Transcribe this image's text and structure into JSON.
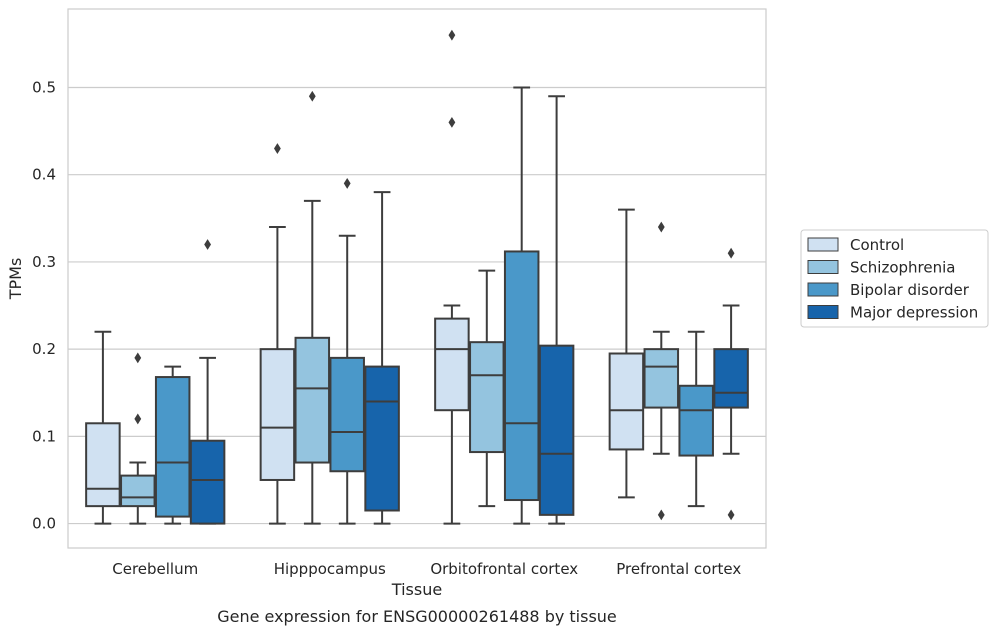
{
  "chart_data": {
    "type": "box",
    "caption": "Gene expression for ENSG00000261488 by tissue",
    "xlabel": "Tissue",
    "ylabel": "TPMs",
    "ylim": [
      -0.028,
      0.59
    ],
    "yticks": [
      "0.0",
      "0.1",
      "0.2",
      "0.3",
      "0.4",
      "0.5"
    ],
    "grid": "horizontal",
    "legend_position": "right",
    "categories": [
      "Cerebellum",
      "Hipppocampus",
      "Orbitofrontal cortex",
      "Prefrontal cortex"
    ],
    "series": [
      {
        "name": "Control",
        "color": "#d0e1f2",
        "boxes": [
          {
            "whislo": 0.0,
            "q1": 0.02,
            "med": 0.04,
            "q3": 0.115,
            "whishi": 0.22,
            "fliers": []
          },
          {
            "whislo": 0.0,
            "q1": 0.05,
            "med": 0.11,
            "q3": 0.2,
            "whishi": 0.34,
            "fliers": [
              0.43
            ]
          },
          {
            "whislo": 0.0,
            "q1": 0.13,
            "med": 0.2,
            "q3": 0.235,
            "whishi": 0.25,
            "fliers": [
              0.46,
              0.56
            ]
          },
          {
            "whislo": 0.03,
            "q1": 0.085,
            "med": 0.13,
            "q3": 0.195,
            "whishi": 0.36,
            "fliers": []
          }
        ]
      },
      {
        "name": "Schizophrenia",
        "color": "#94c4df",
        "boxes": [
          {
            "whislo": 0.0,
            "q1": 0.02,
            "med": 0.03,
            "q3": 0.055,
            "whishi": 0.07,
            "fliers": [
              0.12,
              0.19
            ]
          },
          {
            "whislo": 0.0,
            "q1": 0.07,
            "med": 0.155,
            "q3": 0.213,
            "whishi": 0.37,
            "fliers": [
              0.49
            ]
          },
          {
            "whislo": 0.02,
            "q1": 0.082,
            "med": 0.17,
            "q3": 0.208,
            "whishi": 0.29,
            "fliers": []
          },
          {
            "whislo": 0.08,
            "q1": 0.133,
            "med": 0.18,
            "q3": 0.2,
            "whishi": 0.22,
            "fliers": [
              0.01,
              0.34
            ]
          }
        ]
      },
      {
        "name": "Bipolar disorder",
        "color": "#4a98c9",
        "boxes": [
          {
            "whislo": 0.0,
            "q1": 0.008,
            "med": 0.07,
            "q3": 0.168,
            "whishi": 0.18,
            "fliers": []
          },
          {
            "whislo": 0.0,
            "q1": 0.06,
            "med": 0.105,
            "q3": 0.19,
            "whishi": 0.33,
            "fliers": [
              0.39
            ]
          },
          {
            "whislo": 0.0,
            "q1": 0.027,
            "med": 0.115,
            "q3": 0.312,
            "whishi": 0.5,
            "fliers": []
          },
          {
            "whislo": 0.02,
            "q1": 0.078,
            "med": 0.13,
            "q3": 0.158,
            "whishi": 0.22,
            "fliers": []
          }
        ]
      },
      {
        "name": "Major depression",
        "color": "#1764ab",
        "boxes": [
          {
            "whislo": 0.0,
            "q1": 0.0,
            "med": 0.05,
            "q3": 0.095,
            "whishi": 0.19,
            "fliers": [
              0.32
            ]
          },
          {
            "whislo": 0.0,
            "q1": 0.015,
            "med": 0.14,
            "q3": 0.18,
            "whishi": 0.38,
            "fliers": []
          },
          {
            "whislo": 0.0,
            "q1": 0.01,
            "med": 0.08,
            "q3": 0.204,
            "whishi": 0.49,
            "fliers": []
          },
          {
            "whislo": 0.08,
            "q1": 0.133,
            "med": 0.15,
            "q3": 0.2,
            "whishi": 0.25,
            "fliers": [
              0.01,
              0.31
            ]
          }
        ]
      }
    ]
  }
}
